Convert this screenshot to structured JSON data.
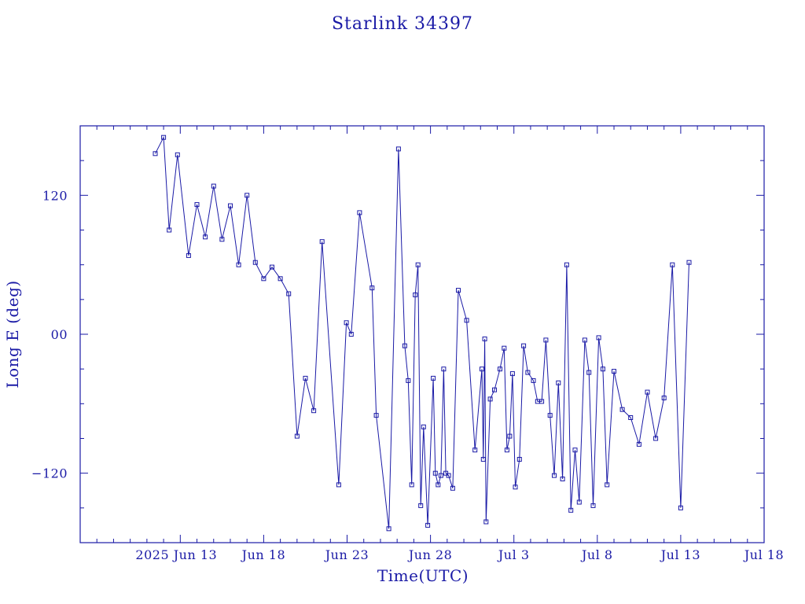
{
  "chart_data": {
    "type": "line",
    "title": "Starlink 34397",
    "xlabel": "Time(UTC)",
    "ylabel": "Long E (deg)",
    "x_range": [
      "2025-06-07",
      "2025-07-18"
    ],
    "ylim": [
      -180,
      180
    ],
    "y_ticks": [
      {
        "value": 120,
        "label": "120"
      },
      {
        "value": 0,
        "label": "00"
      },
      {
        "value": -120,
        "label": "−120"
      }
    ],
    "x_ticks": [
      {
        "date": "2025-06-13",
        "label": "2025 Jun 13"
      },
      {
        "date": "2025-06-18",
        "label": "Jun 18"
      },
      {
        "date": "2025-06-23",
        "label": "Jun 23"
      },
      {
        "date": "2025-06-28",
        "label": "Jun 28"
      },
      {
        "date": "2025-07-03",
        "label": "Jul  3"
      },
      {
        "date": "2025-07-08",
        "label": "Jul  8"
      },
      {
        "date": "2025-07-13",
        "label": "Jul 13"
      },
      {
        "date": "2025-07-18",
        "label": "Jul 18"
      }
    ],
    "grid": false,
    "marker": "open-square",
    "color": "#1a1aa6",
    "series": [
      {
        "x": [
          "2025-06-11 12:00",
          "2025-06-12 00:00",
          "2025-06-12 08:00",
          "2025-06-12 20:00",
          "2025-06-13 12:00",
          "2025-06-14 00:00",
          "2025-06-14 12:00",
          "2025-06-15 00:00",
          "2025-06-15 12:00",
          "2025-06-16 00:00",
          "2025-06-16 12:00",
          "2025-06-17 00:00",
          "2025-06-17 12:00",
          "2025-06-18 00:00",
          "2025-06-18 12:00",
          "2025-06-19 00:00",
          "2025-06-19 12:00",
          "2025-06-20 00:00",
          "2025-06-20 12:00",
          "2025-06-21 00:00",
          "2025-06-21 12:00",
          "2025-06-22 12:00",
          "2025-06-22 23:00",
          "2025-06-23 06:00",
          "2025-06-23 18:00",
          "2025-06-24 12:00",
          "2025-06-24 18:00",
          "2025-06-25 12:00",
          "2025-06-26 02:00",
          "2025-06-26 11:00",
          "2025-06-26 16:00",
          "2025-06-26 21:00",
          "2025-06-27 02:00",
          "2025-06-27 06:00",
          "2025-06-27 10:00",
          "2025-06-27 14:00",
          "2025-06-27 20:00",
          "2025-06-28 04:00",
          "2025-06-28 07:00",
          "2025-06-28 11:00",
          "2025-06-28 15:00",
          "2025-06-28 19:00",
          "2025-06-28 22:00",
          "2025-06-29 02:00",
          "2025-06-29 08:00",
          "2025-06-29 16:00",
          "2025-06-30 04:00",
          "2025-06-30 16:00",
          "2025-07-01 02:00",
          "2025-07-01 04:00",
          "2025-07-01 06:00",
          "2025-07-01 08:00",
          "2025-07-01 14:00",
          "2025-07-01 20:00",
          "2025-07-02 04:00",
          "2025-07-02 10:00",
          "2025-07-02 14:00",
          "2025-07-02 18:00",
          "2025-07-02 22:00",
          "2025-07-03 02:00",
          "2025-07-03 08:00",
          "2025-07-03 14:00",
          "2025-07-03 20:00",
          "2025-07-04 04:00",
          "2025-07-04 10:00",
          "2025-07-04 16:00",
          "2025-07-04 22:00",
          "2025-07-05 04:00",
          "2025-07-05 10:00",
          "2025-07-05 16:00",
          "2025-07-05 22:00",
          "2025-07-06 04:00",
          "2025-07-06 10:00",
          "2025-07-06 16:00",
          "2025-07-06 22:00",
          "2025-07-07 06:00",
          "2025-07-07 12:00",
          "2025-07-07 18:00",
          "2025-07-08 02:00",
          "2025-07-08 08:00",
          "2025-07-08 14:00",
          "2025-07-09 00:00",
          "2025-07-09 12:00",
          "2025-07-10 00:00",
          "2025-07-10 12:00",
          "2025-07-11 00:00",
          "2025-07-11 12:00",
          "2025-07-12 00:00",
          "2025-07-12 12:00",
          "2025-07-13 00:00",
          "2025-07-13 12:00"
        ],
        "y": [
          156,
          170,
          90,
          155,
          68,
          112,
          84,
          128,
          82,
          111,
          60,
          120,
          62,
          48,
          58,
          48,
          35,
          -88,
          -38,
          -66,
          80,
          -130,
          10,
          0,
          105,
          40,
          -70,
          -168,
          160,
          -10,
          -40,
          -130,
          34,
          60,
          -148,
          -80,
          -165,
          -38,
          -120,
          -130,
          -122,
          -30,
          -120,
          -122,
          -133,
          38,
          12,
          -100,
          -30,
          -108,
          -4,
          -162,
          -56,
          -48,
          -30,
          -12,
          -100,
          -88,
          -34,
          -132,
          -108,
          -10,
          -33,
          -40,
          -58,
          -58,
          -5,
          -70,
          -122,
          -42,
          -125,
          60,
          -152,
          -100,
          -145,
          -5,
          -33,
          -148,
          -3,
          -30,
          -130,
          -32,
          -65,
          -72,
          -95,
          -50,
          -90,
          -55,
          60,
          -150,
          62
        ]
      }
    ]
  }
}
